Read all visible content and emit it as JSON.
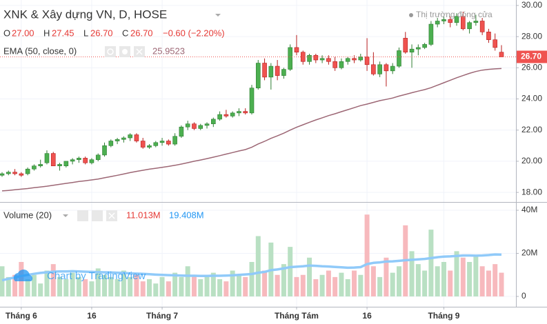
{
  "chart_data": {
    "type": "candlestick",
    "title": "XNK & Xây dựng VN, D, HOSE",
    "market_status": "Thị trường đóng cửa",
    "ohlc_legend": {
      "o_label": "O",
      "o": "27.00",
      "h_label": "H",
      "h": "27.45",
      "l_label": "L",
      "l": "26.70",
      "c_label": "C",
      "c": "26.70",
      "change": "−0.60 (−2.20%)"
    },
    "last_price_label": "26.70",
    "watermark": "Chart by TradingView",
    "up_color": "#4caf50",
    "down_color": "#ef5350",
    "ylim": [
      17.43,
      30.35
    ],
    "yticks": [
      {
        "value": 18,
        "label": "18.00"
      },
      {
        "value": 20,
        "label": "20.00"
      },
      {
        "value": 22,
        "label": "22.00"
      },
      {
        "value": 24,
        "label": "24.00"
      },
      {
        "value": 26,
        "label": "26.00"
      },
      {
        "value": 28,
        "label": "28.00"
      },
      {
        "value": 30,
        "label": "30.00"
      }
    ],
    "categories": [
      null,
      null,
      null,
      "Tháng 6",
      null,
      null,
      null,
      null,
      null,
      null,
      null,
      null,
      null,
      null,
      "16",
      null,
      null,
      null,
      null,
      null,
      null,
      null,
      null,
      null,
      null,
      "Tháng 7",
      null,
      null,
      null,
      null,
      null,
      null,
      null,
      null,
      null,
      null,
      null,
      null,
      null,
      null,
      null,
      null,
      null,
      null,
      null,
      null,
      "Tháng Tám",
      null,
      null,
      null,
      null,
      null,
      null,
      null,
      null,
      null,
      null,
      "16",
      null,
      null,
      null,
      null,
      null,
      null,
      null,
      null,
      null,
      null,
      null,
      "Tháng 9",
      null,
      null,
      null,
      null,
      null,
      null,
      null,
      null,
      null
    ],
    "open": [
      19.1,
      19.2,
      19.3,
      19.2,
      19.2,
      19.5,
      19.7,
      19.9,
      20.5,
      19.7,
      19.7,
      20.0,
      20.1,
      20.2,
      19.9,
      20.1,
      20.4,
      21.0,
      21.3,
      21.4,
      21.5,
      21.7,
      21.3,
      20.9,
      21.0,
      21.2,
      21.3,
      21.1,
      21.6,
      22.2,
      22.4,
      22.1,
      22.3,
      22.4,
      22.7,
      23.0,
      22.9,
      23.1,
      23.2,
      23.1,
      24.7,
      26.3,
      25.4,
      26.1,
      25.5,
      25.9,
      27.3,
      27.0,
      26.4,
      26.8,
      26.5,
      26.6,
      26.4,
      26.0,
      26.4,
      26.6,
      26.5,
      26.7,
      26.2,
      25.6,
      26.2,
      25.8,
      26.1,
      27.9,
      27.0,
      27.2,
      27.3,
      27.5,
      28.8,
      29.0,
      29.1,
      28.9,
      29.3,
      28.5,
      28.9,
      29.0,
      28.3,
      27.8,
      27.0
    ],
    "high": [
      19.3,
      19.4,
      19.5,
      19.3,
      19.6,
      19.8,
      20.1,
      20.7,
      20.6,
      19.9,
      20.0,
      20.2,
      20.3,
      20.3,
      20.2,
      20.5,
      21.2,
      21.4,
      21.5,
      21.6,
      21.8,
      21.8,
      21.5,
      21.1,
      21.3,
      21.5,
      21.4,
      21.8,
      22.3,
      22.6,
      22.5,
      22.4,
      22.5,
      22.8,
      23.2,
      23.3,
      23.2,
      23.4,
      23.4,
      24.9,
      26.5,
      26.6,
      26.3,
      26.5,
      26.0,
      27.5,
      28.1,
      27.1,
      26.9,
      26.9,
      26.8,
      26.8,
      26.7,
      26.6,
      26.7,
      26.8,
      26.9,
      27.9,
      27.0,
      26.4,
      26.3,
      26.3,
      27.3,
      28.3,
      27.5,
      27.5,
      27.6,
      29.0,
      29.2,
      29.3,
      29.3,
      29.5,
      29.6,
      29.0,
      29.4,
      29.2,
      28.5,
      28.2,
      27.45
    ],
    "low": [
      19.0,
      19.1,
      19.1,
      19.0,
      19.1,
      19.4,
      19.6,
      19.8,
      19.7,
      19.4,
      19.6,
      19.8,
      19.9,
      19.8,
      19.8,
      20.0,
      20.3,
      20.9,
      21.1,
      21.2,
      21.3,
      21.2,
      20.8,
      20.8,
      20.9,
      21.0,
      21.0,
      21.0,
      21.5,
      22.0,
      22.0,
      22.0,
      22.1,
      22.2,
      22.6,
      22.8,
      22.8,
      22.9,
      23.0,
      23.0,
      24.6,
      25.2,
      24.6,
      25.2,
      25.3,
      25.8,
      26.8,
      26.2,
      26.2,
      26.3,
      26.3,
      26.2,
      25.8,
      25.9,
      26.2,
      26.3,
      26.4,
      25.8,
      25.5,
      25.4,
      24.8,
      25.6,
      26.0,
      26.9,
      26.0,
      26.8,
      27.2,
      27.4,
      28.6,
      28.8,
      28.6,
      28.7,
      28.4,
      28.2,
      28.7,
      28.1,
      27.6,
      27.1,
      26.7
    ],
    "close": [
      19.2,
      19.3,
      19.2,
      19.1,
      19.5,
      19.7,
      19.8,
      20.5,
      19.7,
      19.8,
      20.0,
      20.1,
      20.2,
      19.9,
      20.1,
      20.4,
      21.0,
      21.3,
      21.4,
      21.5,
      21.7,
      21.3,
      20.9,
      21.0,
      21.2,
      21.3,
      21.1,
      21.6,
      22.2,
      22.4,
      22.1,
      22.3,
      22.4,
      22.7,
      23.0,
      22.9,
      23.1,
      23.2,
      23.1,
      24.7,
      26.3,
      25.4,
      26.1,
      25.5,
      25.9,
      27.3,
      27.0,
      26.4,
      26.8,
      26.5,
      26.6,
      26.4,
      26.0,
      26.4,
      26.6,
      26.5,
      26.7,
      26.2,
      25.6,
      26.2,
      25.8,
      26.1,
      27.1,
      27.0,
      27.2,
      27.3,
      27.5,
      28.8,
      29.0,
      29.1,
      28.9,
      29.3,
      28.5,
      28.9,
      29.0,
      28.3,
      27.8,
      27.3,
      26.7
    ],
    "ema": {
      "label": "EMA (50, close, 0)",
      "value_label": "25.9523",
      "color": "#9c6674",
      "values": [
        18.1,
        18.13,
        18.17,
        18.21,
        18.25,
        18.3,
        18.35,
        18.4,
        18.46,
        18.52,
        18.58,
        18.64,
        18.7,
        18.75,
        18.8,
        18.86,
        18.94,
        19.02,
        19.1,
        19.18,
        19.27,
        19.35,
        19.42,
        19.49,
        19.55,
        19.61,
        19.67,
        19.74,
        19.82,
        19.91,
        20.0,
        20.08,
        20.17,
        20.26,
        20.36,
        20.46,
        20.56,
        20.66,
        20.75,
        20.9,
        21.11,
        21.28,
        21.47,
        21.63,
        21.8,
        22.0,
        22.18,
        22.34,
        22.5,
        22.65,
        22.79,
        22.93,
        23.05,
        23.18,
        23.31,
        23.44,
        23.57,
        23.67,
        23.78,
        23.89,
        23.97,
        24.06,
        24.18,
        24.29,
        24.4,
        24.5,
        24.6,
        24.72,
        24.88,
        25.04,
        25.2,
        25.36,
        25.5,
        25.64,
        25.76,
        25.85,
        25.9,
        25.93,
        25.9523
      ]
    },
    "volume": {
      "label": "Volume (20)",
      "value_label": "11.013M",
      "ma_label": "19.408M",
      "ma_color": "#90caf9",
      "up_color": "#b9e0c3",
      "down_color": "#f7b9bd",
      "ylim": [
        -4.8,
        43.2
      ],
      "yticks": [
        0,
        {
          "value": 20,
          "label": "20M"
        },
        {
          "value": 40,
          "label": "40M"
        }
      ],
      "values": [
        14,
        9,
        10,
        16,
        8,
        10,
        6,
        12,
        15,
        9,
        8,
        11,
        9,
        8,
        7,
        13,
        10,
        9,
        8,
        12,
        9,
        10,
        7,
        8,
        6,
        9,
        7,
        11,
        9,
        14,
        10,
        8,
        9,
        11,
        8,
        7,
        12,
        10,
        9,
        16,
        28,
        12,
        25,
        10,
        15,
        23,
        9,
        10,
        18,
        8,
        10,
        12,
        9,
        11,
        8,
        12,
        10,
        38,
        14,
        9,
        18,
        11,
        14,
        33,
        21,
        15,
        12,
        31,
        14,
        16,
        12,
        21,
        18,
        16,
        19,
        14,
        12,
        15,
        11.013
      ],
      "ma_values": [
        7.5,
        8.2,
        8.8,
        9.5,
        10.0,
        10.5,
        10.9,
        11.2,
        11.5,
        11.6,
        11.6,
        11.7,
        11.6,
        11.5,
        11.4,
        11.3,
        11.2,
        11.1,
        11.0,
        10.9,
        10.7,
        10.6,
        10.5,
        10.3,
        10.1,
        10.0,
        9.9,
        9.8,
        9.7,
        9.6,
        9.6,
        9.5,
        9.5,
        9.6,
        9.6,
        9.7,
        9.8,
        10.0,
        10.2,
        10.4,
        11.0,
        11.4,
        12.2,
        12.5,
        13.0,
        13.6,
        13.8,
        14.0,
        14.3,
        14.2,
        14.0,
        13.9,
        13.7,
        13.5,
        13.3,
        13.4,
        13.6,
        15.0,
        15.6,
        15.8,
        16.2,
        16.3,
        16.5,
        16.8,
        17.0,
        17.2,
        17.4,
        17.8,
        18.2,
        18.5,
        18.6,
        18.8,
        19.0,
        19.0,
        18.9,
        19.0,
        19.2,
        19.5,
        19.408
      ]
    }
  }
}
